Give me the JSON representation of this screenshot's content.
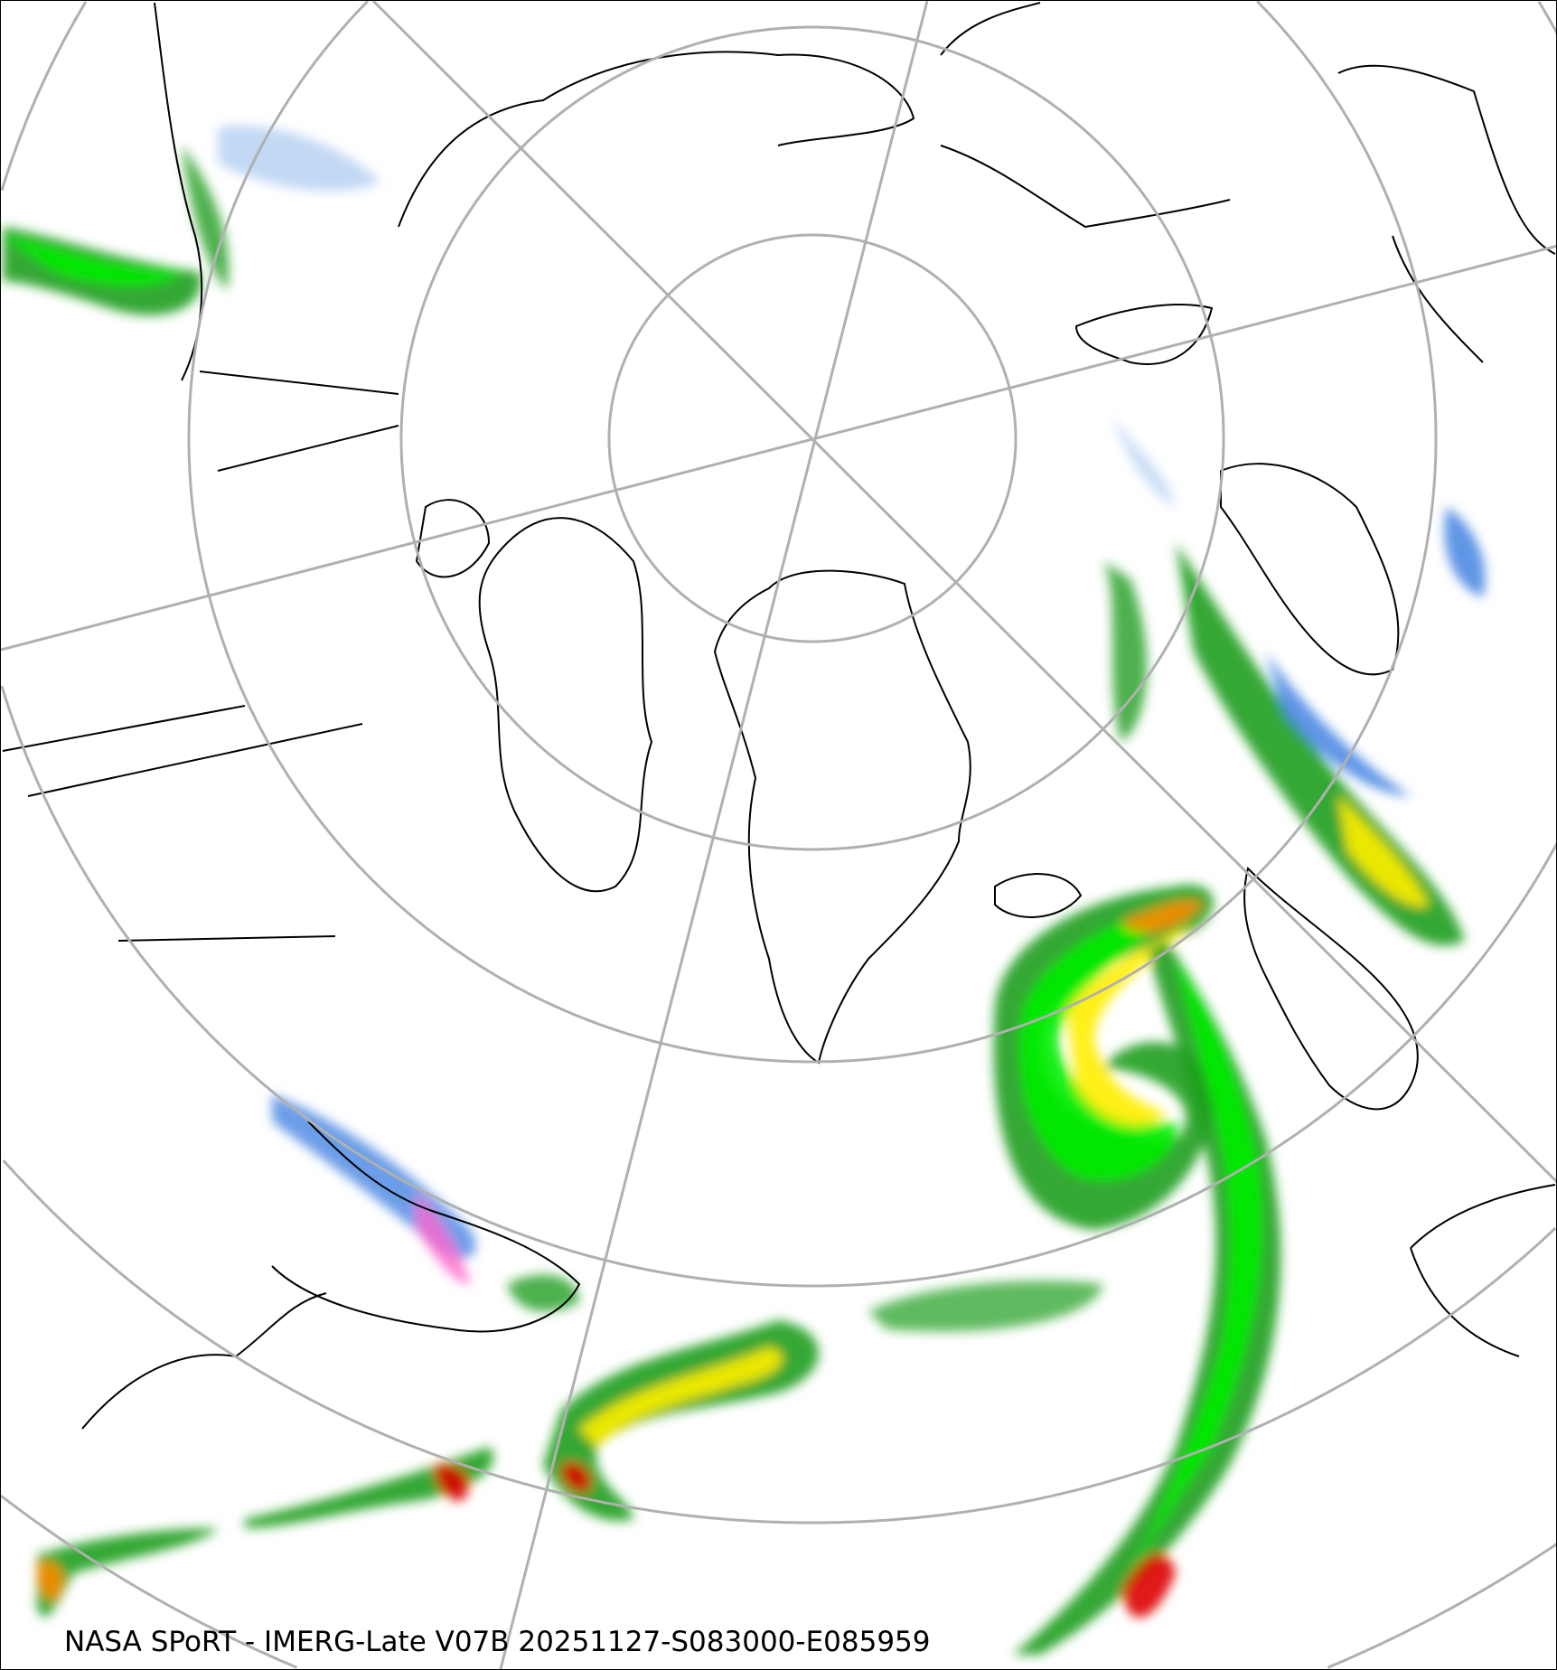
{
  "caption": "NASA SPoRT - IMERG-Late V07B 20251127-S083000-E085959",
  "map": {
    "projection": "north-polar-stereographic",
    "colors": {
      "gridlines": "#b0b0b0",
      "coastlines": "#000000",
      "light_precip": "#a8c8f0",
      "snow_moderate": "#3a7ce0",
      "rain_light": "#1e9e1e",
      "rain_moderate": "#00ee00",
      "rain_heavy": "#ffee00",
      "rain_very_heavy": "#ff8800",
      "rain_extreme": "#dd0000",
      "mixed": "#ff66cc"
    }
  }
}
